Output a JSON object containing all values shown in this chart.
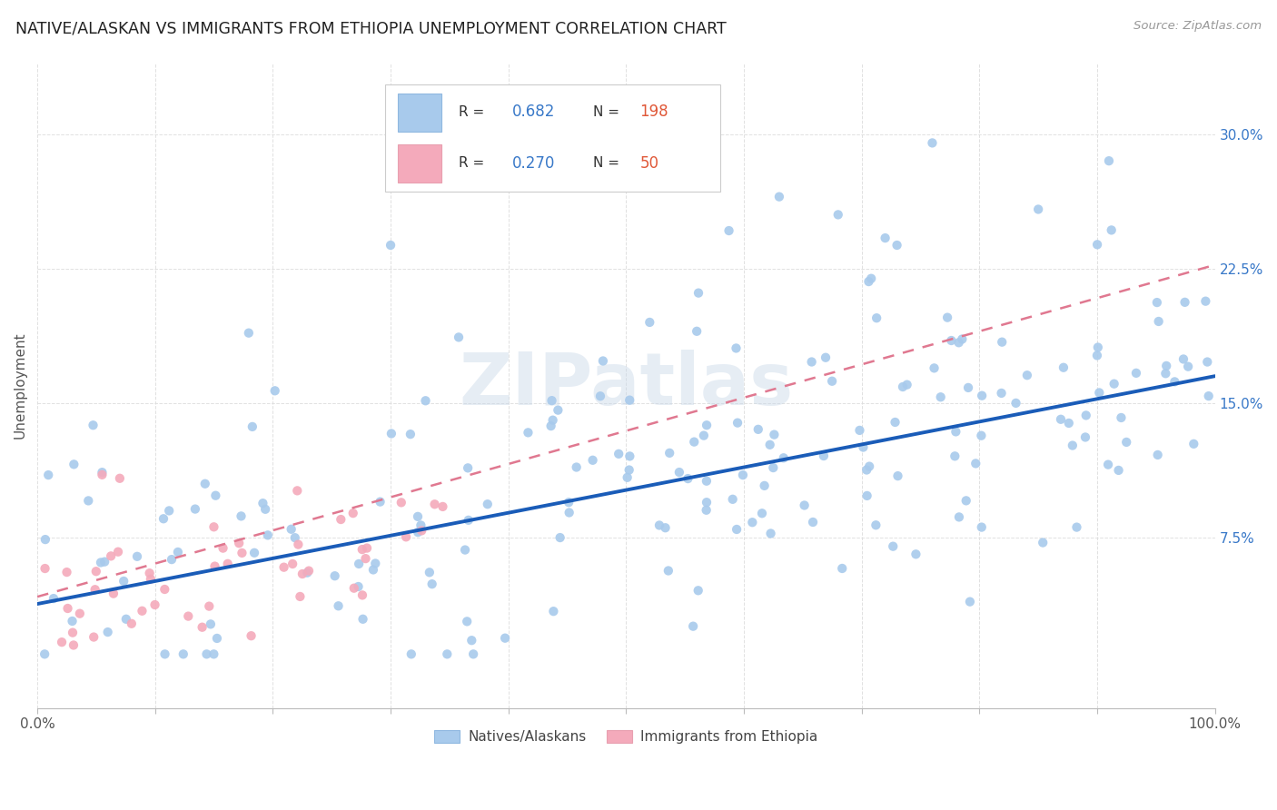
{
  "title": "NATIVE/ALASKAN VS IMMIGRANTS FROM ETHIOPIA UNEMPLOYMENT CORRELATION CHART",
  "source": "Source: ZipAtlas.com",
  "ylabel": "Unemployment",
  "ytick_labels": [
    "7.5%",
    "15.0%",
    "22.5%",
    "30.0%"
  ],
  "ytick_values": [
    0.075,
    0.15,
    0.225,
    0.3
  ],
  "blue_R": "0.682",
  "blue_N": "198",
  "pink_R": "0.270",
  "pink_N": "50",
  "legend_label_blue": "Natives/Alaskans",
  "legend_label_pink": "Immigrants from Ethiopia",
  "blue_color": "#A8CAEC",
  "pink_color": "#F4AABB",
  "blue_line_color": "#1A5CB8",
  "pink_line_color": "#E07890",
  "watermark": "ZIPatlas",
  "background_color": "#FFFFFF",
  "grid_color": "#DDDDDD",
  "blue_seed": 1234,
  "pink_seed": 5678,
  "ylim_low": -0.02,
  "ylim_high": 0.34
}
